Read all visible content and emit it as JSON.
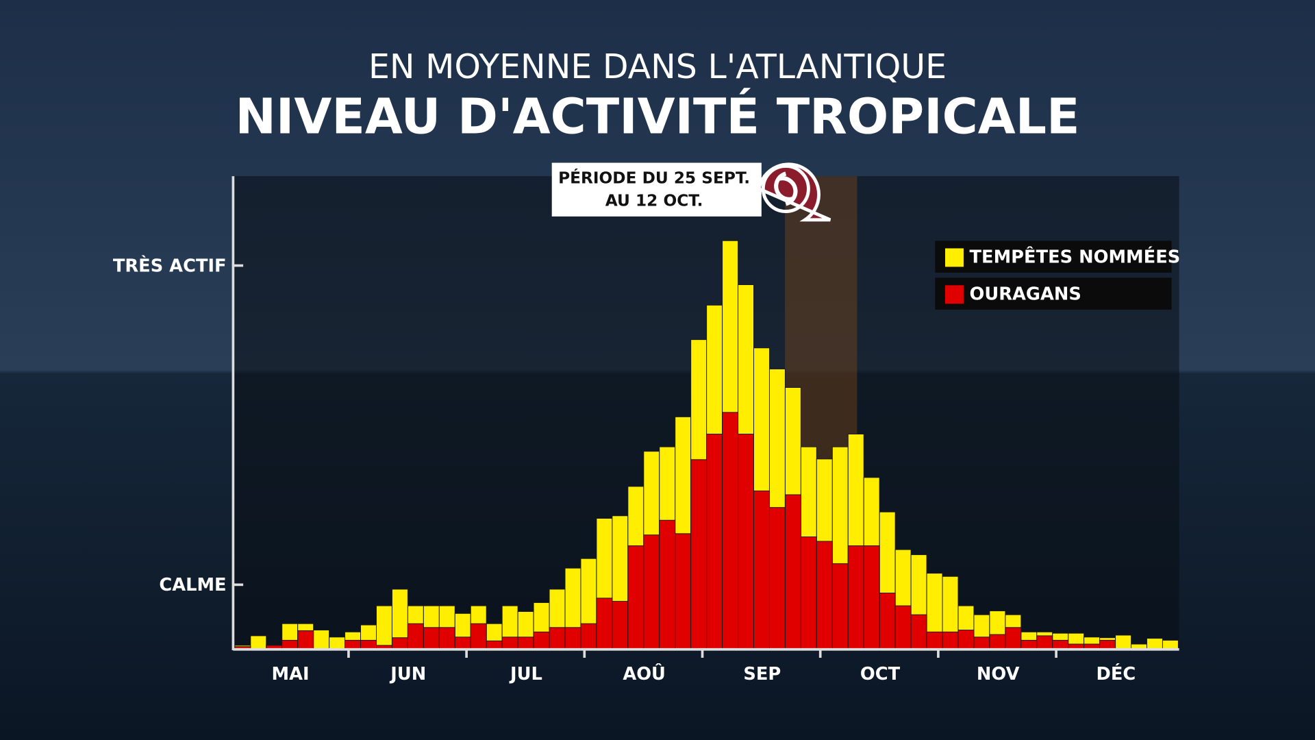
{
  "chart_data": {
    "type": "bar",
    "subtitle": "EN MOYENNE DANS L'ATLANTIQUE",
    "title": "NIVEAU D'ACTIVITÉ TROPICALE",
    "annotation": [
      "PÉRIODE DU 25 SEPT.",
      "AU 12 OCT."
    ],
    "x_labels": [
      "MAI",
      "JUN",
      "JUL",
      "AOÛ",
      "SEP",
      "OCT",
      "NOV",
      "DÉC"
    ],
    "ylim": [
      0,
      7.4
    ],
    "yticks": [
      {
        "value": 1,
        "label": "CALME"
      },
      {
        "value": 6,
        "label": "TRÈS ACTIF"
      }
    ],
    "overlap": true,
    "series": [
      {
        "name": "TEMPÊTES NOMMÉES",
        "color": "#ffee00",
        "values": [
          0.05,
          0.2,
          0.05,
          0.39,
          0.39,
          0.29,
          0.18,
          0.26,
          0.37,
          0.67,
          0.93,
          0.67,
          0.67,
          0.67,
          0.55,
          0.67,
          0.39,
          0.67,
          0.58,
          0.72,
          0.93,
          1.26,
          1.41,
          2.04,
          2.08,
          2.54,
          3.09,
          3.16,
          3.63,
          4.84,
          5.38,
          6.39,
          5.7,
          4.71,
          4.38,
          4.09,
          3.16,
          2.97,
          3.16,
          3.36,
          2.68,
          2.14,
          1.55,
          1.47,
          1.18,
          1.13,
          0.67,
          0.53,
          0.59,
          0.53,
          0.26,
          0.26,
          0.24,
          0.24,
          0.18,
          0.17,
          0.21,
          0.07,
          0.16,
          0.13
        ]
      },
      {
        "name": "OURAGANS",
        "color": "#e00000",
        "values": [
          0.03,
          0,
          0.05,
          0.13,
          0.28,
          0,
          0,
          0.13,
          0.13,
          0.05,
          0.17,
          0.39,
          0.33,
          0.33,
          0.18,
          0.39,
          0.12,
          0.18,
          0.18,
          0.26,
          0.33,
          0.33,
          0.39,
          0.79,
          0.74,
          1.61,
          1.78,
          2.01,
          1.8,
          2.96,
          3.36,
          3.7,
          3.36,
          2.47,
          2.21,
          2.41,
          1.75,
          1.68,
          1.33,
          1.61,
          1.61,
          0.87,
          0.67,
          0.53,
          0.26,
          0.26,
          0.29,
          0.18,
          0.22,
          0.33,
          0.13,
          0.2,
          0.13,
          0.07,
          0.07,
          0.13,
          0,
          0,
          0,
          0
        ]
      }
    ]
  }
}
